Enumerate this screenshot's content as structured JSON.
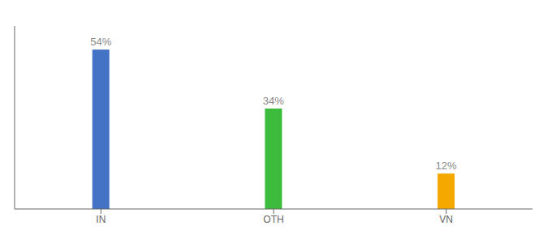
{
  "chart_data": {
    "type": "bar",
    "categories": [
      "IN",
      "OTH",
      "VN"
    ],
    "values": [
      54,
      34,
      12
    ],
    "value_labels": [
      "54%",
      "34%",
      "12%"
    ],
    "colors": [
      "#4472c4",
      "#3dbb3d",
      "#f5a900"
    ],
    "ylim": [
      0,
      62
    ],
    "data_labels": true,
    "tick_labels": "x",
    "grid": false
  }
}
